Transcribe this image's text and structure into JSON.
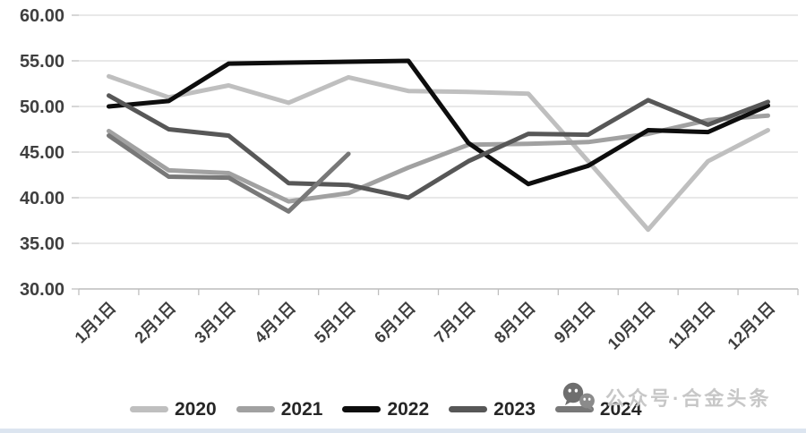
{
  "chart_data": {
    "type": "line",
    "categories": [
      "1月1日",
      "2月1日",
      "3月1日",
      "4月1日",
      "5月1日",
      "6月1日",
      "7月1日",
      "8月1日",
      "9月1日",
      "10月1日",
      "11月1日",
      "12月1日"
    ],
    "series": [
      {
        "name": "2020",
        "color": "#bfbfbf",
        "values": [
          53.3,
          51.0,
          52.3,
          50.4,
          53.2,
          51.7,
          51.6,
          51.4,
          44.0,
          36.5,
          44.0,
          47.4
        ]
      },
      {
        "name": "2021",
        "color": "#a1a1a1",
        "values": [
          47.3,
          43.0,
          42.7,
          39.6,
          40.5,
          43.3,
          45.8,
          45.9,
          46.1,
          47.0,
          48.5,
          49.0
        ]
      },
      {
        "name": "2022",
        "color": "#0d0d0d",
        "values": [
          50.0,
          50.6,
          54.7,
          54.8,
          54.9,
          55.0,
          46.0,
          41.5,
          43.5,
          47.4,
          47.2,
          50.1
        ]
      },
      {
        "name": "2023",
        "color": "#575757",
        "values": [
          51.2,
          47.5,
          46.8,
          41.6,
          41.4,
          40.0,
          44.0,
          47.0,
          46.9,
          50.7,
          48.0,
          50.5
        ]
      },
      {
        "name": "2024",
        "color": "#787878",
        "values": [
          46.8,
          42.3,
          42.2,
          38.5,
          44.8
        ]
      }
    ],
    "title": "",
    "xlabel": "",
    "ylabel": "",
    "ylim": [
      30,
      60
    ],
    "yticks": [
      60,
      55,
      50,
      45,
      40,
      35,
      30
    ],
    "ytick_labels": [
      "60.00",
      "55.00",
      "50.00",
      "45.00",
      "40.00",
      "35.00",
      "30.00"
    ],
    "grid": "horizontal",
    "legend_position": "bottom"
  },
  "watermark": {
    "icon": "wechat-icon",
    "text": "公众号·合金头条"
  },
  "style_colors": {
    "gridline": "#d9d9d9",
    "axis_line": "#bfbfbf",
    "tick_label": "#3f3f3f",
    "watermark_text": "#c7c7c7",
    "watermark_icon_dark": "#6e6e6e",
    "watermark_icon_light": "#8b8b8b",
    "bottom_strip": "#dce5f0"
  }
}
